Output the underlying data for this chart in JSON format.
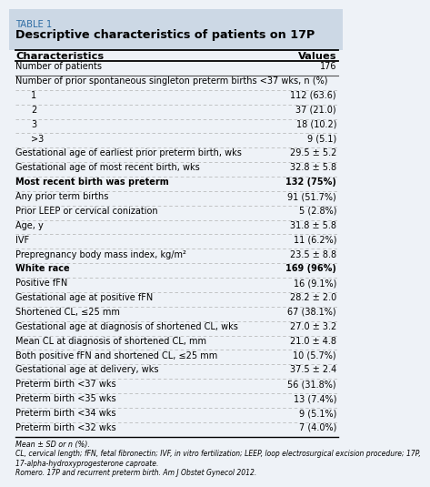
{
  "table_label": "TABLE 1",
  "title": "Descriptive characteristics of patients on 17P",
  "col_headers": [
    "Characteristics",
    "Values"
  ],
  "rows": [
    {
      "char": "Number of patients",
      "val": "176",
      "indent": 0,
      "bold": false,
      "separator": "solid"
    },
    {
      "char": "Number of prior spontaneous singleton preterm births <37 wks, n (%)",
      "val": "",
      "indent": 0,
      "bold": false,
      "separator": "dashed"
    },
    {
      "char": "1",
      "val": "112 (63.6)",
      "indent": 1,
      "bold": false,
      "separator": "dashed"
    },
    {
      "char": "2",
      "val": "37 (21.0)",
      "indent": 1,
      "bold": false,
      "separator": "dashed"
    },
    {
      "char": "3",
      "val": "18 (10.2)",
      "indent": 1,
      "bold": false,
      "separator": "dashed"
    },
    {
      "char": ">3",
      "val": "9 (5.1)",
      "indent": 1,
      "bold": false,
      "separator": "dashed"
    },
    {
      "char": "Gestational age of earliest prior preterm birth, wks",
      "val": "29.5 ± 5.2",
      "indent": 0,
      "bold": false,
      "separator": "dashed"
    },
    {
      "char": "Gestational age of most recent birth, wks",
      "val": "32.8 ± 5.8",
      "indent": 0,
      "bold": false,
      "separator": "dashed"
    },
    {
      "char": "Most recent birth was preterm",
      "val": "132 (75%)",
      "indent": 0,
      "bold": true,
      "separator": "dashed"
    },
    {
      "char": "Any prior term births",
      "val": "91 (51.7%)",
      "indent": 0,
      "bold": false,
      "separator": "dashed"
    },
    {
      "char": "Prior LEEP or cervical conization",
      "val": "5 (2.8%)",
      "indent": 0,
      "bold": false,
      "separator": "dashed"
    },
    {
      "char": "Age, y",
      "val": "31.8 ± 5.8",
      "indent": 0,
      "bold": false,
      "separator": "dashed"
    },
    {
      "char": "IVF",
      "val": "11 (6.2%)",
      "indent": 0,
      "bold": false,
      "separator": "dashed"
    },
    {
      "char": "Prepregnancy body mass index, kg/m²",
      "val": "23.5 ± 8.8",
      "indent": 0,
      "bold": false,
      "separator": "dashed"
    },
    {
      "char": "White race",
      "val": "169 (96%)",
      "indent": 0,
      "bold": true,
      "separator": "dashed"
    },
    {
      "char": "Positive fFN",
      "val": "16 (9.1%)",
      "indent": 0,
      "bold": false,
      "separator": "dashed"
    },
    {
      "char": "Gestational age at positive fFN",
      "val": "28.2 ± 2.0",
      "indent": 0,
      "bold": false,
      "separator": "dashed"
    },
    {
      "char": "Shortened CL, ≤25 mm",
      "val": "67 (38.1%)",
      "indent": 0,
      "bold": false,
      "separator": "dashed"
    },
    {
      "char": "Gestational age at diagnosis of shortened CL, wks",
      "val": "27.0 ± 3.2",
      "indent": 0,
      "bold": false,
      "separator": "dashed"
    },
    {
      "char": "Mean CL at diagnosis of shortened CL, mm",
      "val": "21.0 ± 4.8",
      "indent": 0,
      "bold": false,
      "separator": "dashed"
    },
    {
      "char": "Both positive fFN and shortened CL, ≤25 mm",
      "val": "10 (5.7%)",
      "indent": 0,
      "bold": false,
      "separator": "dashed"
    },
    {
      "char": "Gestational age at delivery, wks",
      "val": "37.5 ± 2.4",
      "indent": 0,
      "bold": false,
      "separator": "dashed"
    },
    {
      "char": "Preterm birth <37 wks",
      "val": "56 (31.8%)",
      "indent": 0,
      "bold": false,
      "separator": "dashed"
    },
    {
      "char": "Preterm birth <35 wks",
      "val": "13 (7.4%)",
      "indent": 0,
      "bold": false,
      "separator": "dashed"
    },
    {
      "char": "Preterm birth <34 wks",
      "val": "9 (5.1%)",
      "indent": 0,
      "bold": false,
      "separator": "dashed"
    },
    {
      "char": "Preterm birth <32 wks",
      "val": "7 (4.0%)",
      "indent": 0,
      "bold": false,
      "separator": "dashed"
    }
  ],
  "footnote1": "Mean ± SD or n (%).",
  "footnote2": "CL, cervical length; fFN, fetal fibronectin; IVF, in vitro fertilization; LEEP, loop electrosurgical excision procedure; 17P,",
  "footnote3": "17-alpha-hydroxyprogesterone caproate.",
  "footnote4": "Romero. 17P and recurrent preterm birth. Am J Obstet Gynecol 2012.",
  "header_bg": "#ccd8e5",
  "table_label_color": "#2e6da4",
  "title_color": "#000000"
}
